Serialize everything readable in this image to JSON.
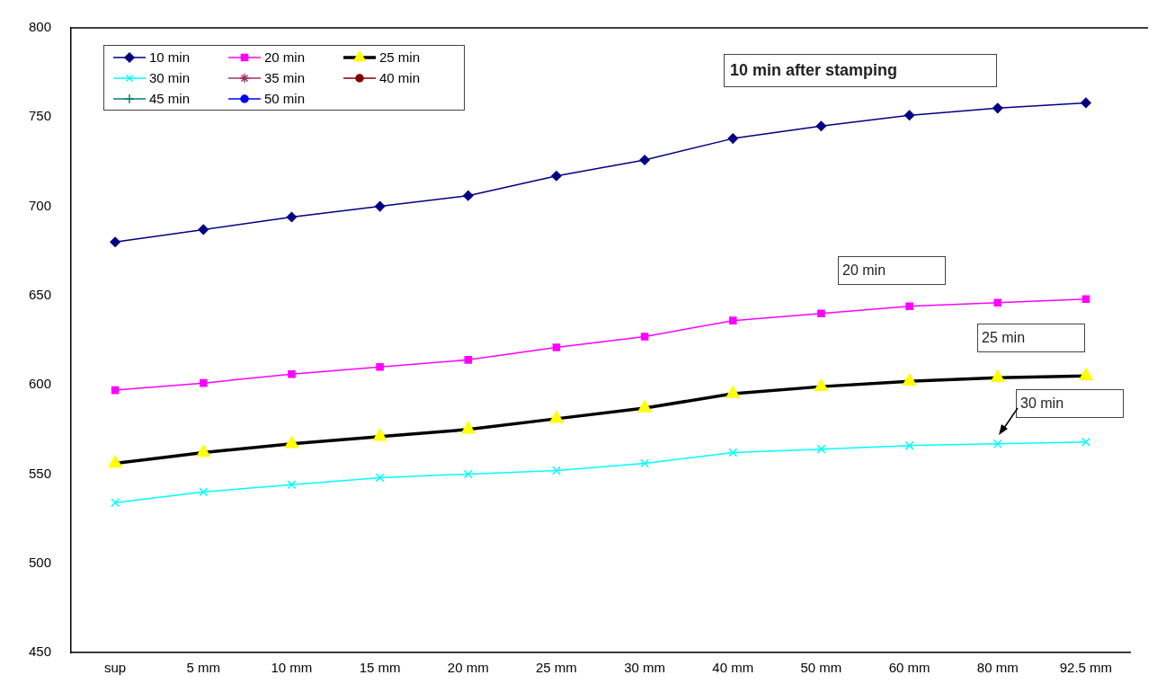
{
  "chart_data": {
    "type": "line",
    "categories": [
      "sup",
      "5 mm",
      "10 mm",
      "15 mm",
      "20 mm",
      "25 mm",
      "30 mm",
      "40 mm",
      "50 mm",
      "60 mm",
      "80 mm",
      "92.5 mm"
    ],
    "ylim": [
      450,
      800
    ],
    "yticks": [
      450,
      500,
      550,
      600,
      650,
      700,
      750,
      800
    ],
    "grid": false,
    "legend": "top left",
    "annotations": [
      "10 min after stamping",
      "20 min",
      "25 min",
      "30 min"
    ],
    "series": [
      {
        "name": "10 min",
        "color": "#000080",
        "marker": "diamond",
        "values": [
          680,
          687,
          694,
          700,
          706,
          717,
          726,
          738,
          745,
          751,
          755,
          758
        ]
      },
      {
        "name": "20 min",
        "color": "#ff00ff",
        "marker": "square",
        "values": [
          597,
          601,
          606,
          610,
          614,
          621,
          627,
          636,
          640,
          644,
          646,
          648
        ]
      },
      {
        "name": "25 min",
        "color": "#000000",
        "colors": [
          "#ffff00",
          "#ffff00",
          "#ffff00",
          "#ffff00",
          "#ffff00",
          "#ffff00",
          "#ffff00",
          "#ffff00",
          "#ffff00",
          "#ffff00",
          "#ffff00",
          "#ffff00"
        ],
        "marker": "triangle",
        "values": [
          556,
          562,
          567,
          571,
          575,
          581,
          587,
          595,
          599,
          602,
          604,
          605
        ]
      },
      {
        "name": "30 min",
        "color": "#00ffff",
        "marker": "cross",
        "values": [
          534,
          540,
          544,
          548,
          550,
          552,
          556,
          562,
          564,
          566,
          567,
          568
        ]
      },
      {
        "name": "35 min",
        "color": "#993366",
        "marker": "star",
        "values": [
          null,
          null,
          null,
          null,
          null,
          null,
          null,
          null,
          null,
          null,
          null,
          null
        ]
      },
      {
        "name": "40 min",
        "color": "#800000",
        "marker": "circle",
        "values": [
          null,
          null,
          null,
          null,
          null,
          null,
          null,
          null,
          null,
          null,
          null,
          null
        ]
      },
      {
        "name": "45 min",
        "color": "#008080",
        "marker": "plus",
        "values": [
          null,
          null,
          null,
          null,
          null,
          null,
          null,
          null,
          null,
          null,
          null,
          null
        ]
      },
      {
        "name": "50 min",
        "color": "#0000ff",
        "marker": "circle",
        "values": [
          null,
          null,
          null,
          null,
          null,
          null,
          null,
          null,
          null,
          null,
          null,
          null
        ]
      }
    ]
  }
}
